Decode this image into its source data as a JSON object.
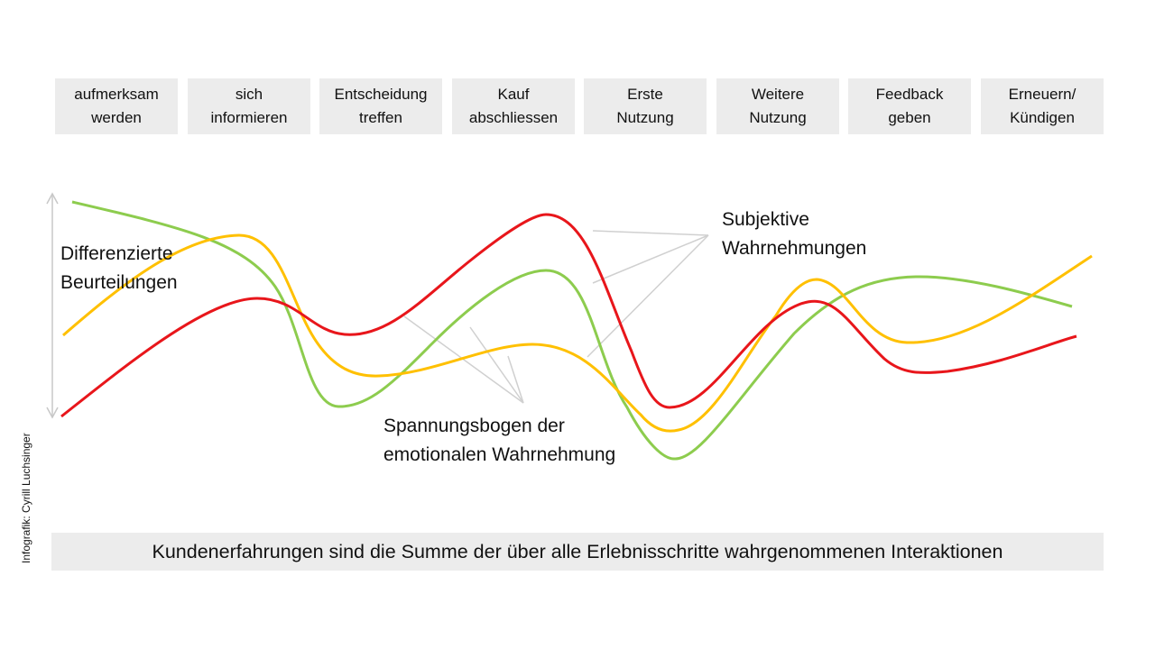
{
  "stages": [
    "aufmerksam\nwerden",
    "sich\ninformieren",
    "Entscheidung\ntreffen",
    "Kauf\nabschliessen",
    "Erste\nNutzung",
    "Weitere\nNutzung",
    "Feedback\ngeben",
    "Erneuern/\nKündigen"
  ],
  "labels": {
    "axis": "Differenzierte\nBeurteilungen",
    "subjective": "Subjektive\nWahrnehmungen",
    "tension": "Spannungsbogen der\nemotionalen Wahrnehmung"
  },
  "summary": "Kundenerfahrungen sind die Summe der über alle Erlebnisschritte wahrgenommenen Interaktionen",
  "credit": "Infografik: Cyrill Luchsinger",
  "colors": {
    "red": "#e8161b",
    "yellow": "#ffc000",
    "green": "#8dcc4e",
    "pointer": "#d0d0d0",
    "arrow": "#c8c8c8"
  }
}
